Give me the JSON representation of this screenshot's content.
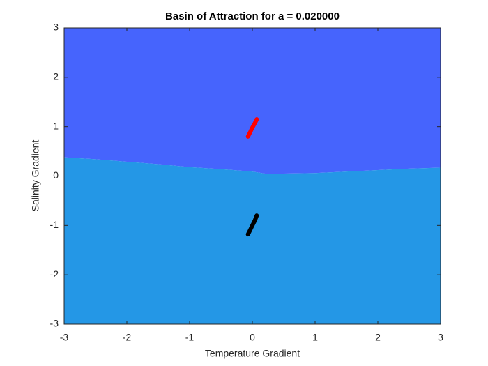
{
  "chart_data": {
    "type": "basin",
    "title": "Basin of Attraction for a = 0.020000",
    "xlabel": "Temperature Gradient",
    "ylabel": "Salinity Gradient",
    "xlim": [
      -3,
      3
    ],
    "ylim": [
      -3,
      3
    ],
    "xticks": [
      -3,
      -2,
      -1,
      0,
      1,
      2,
      3
    ],
    "yticks": [
      -3,
      -2,
      -1,
      0,
      1,
      2,
      3
    ],
    "upper_color": "#4664fd",
    "lower_color": "#2497e6",
    "boundary": {
      "x": [
        -3,
        -2.5,
        -2,
        -1.5,
        -1,
        -0.5,
        0,
        0.2,
        0.5,
        1,
        1.5,
        2,
        2.5,
        3
      ],
      "y": [
        0.38,
        0.34,
        0.29,
        0.24,
        0.18,
        0.14,
        0.09,
        0.05,
        0.05,
        0.06,
        0.09,
        0.12,
        0.15,
        0.17
      ]
    },
    "attractors": [
      {
        "color": "#ff0000",
        "x": [
          -0.07,
          -0.03,
          0.0,
          0.04,
          0.07
        ],
        "y": [
          0.8,
          0.9,
          0.98,
          1.07,
          1.15
        ]
      },
      {
        "color": "#000000",
        "x": [
          -0.07,
          -0.03,
          0.0,
          0.04,
          0.07
        ],
        "y": [
          -1.18,
          -1.08,
          -1.0,
          -0.9,
          -0.8
        ]
      }
    ]
  }
}
